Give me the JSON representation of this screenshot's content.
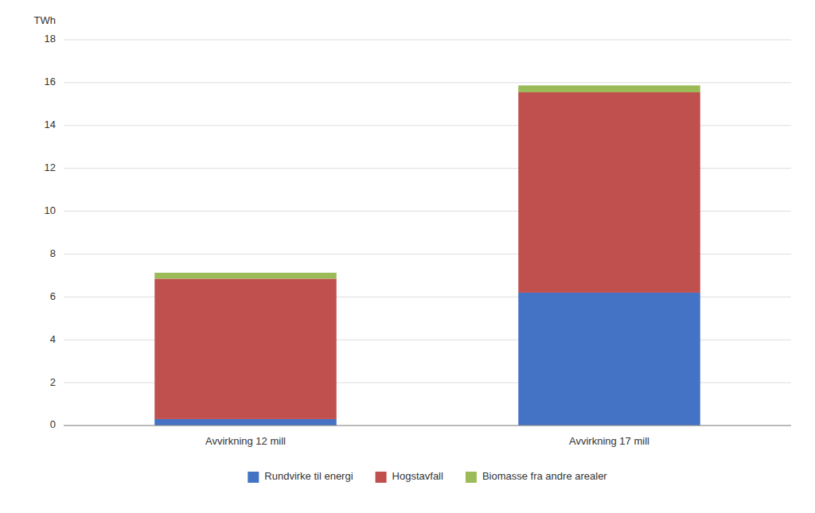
{
  "chart_data": {
    "type": "bar",
    "stacked": true,
    "ylabel": "TWh",
    "categories": [
      "Avvirkning 12 mill",
      "Avvirkning 17 mill"
    ],
    "series": [
      {
        "name": "Rundvirke til energi",
        "color": "#4472C4",
        "values": [
          0.3,
          6.2
        ]
      },
      {
        "name": "Hogstavfall",
        "color": "#C0504D",
        "values": [
          6.55,
          9.35
        ]
      },
      {
        "name": "Biomasse fra andre arealer",
        "color": "#9BBB59",
        "values": [
          0.28,
          0.32
        ]
      }
    ],
    "ylim": [
      0,
      18
    ],
    "yticks": [
      0,
      2,
      4,
      6,
      8,
      10,
      12,
      14,
      16,
      18
    ],
    "grid": true,
    "legend": "bottom"
  }
}
